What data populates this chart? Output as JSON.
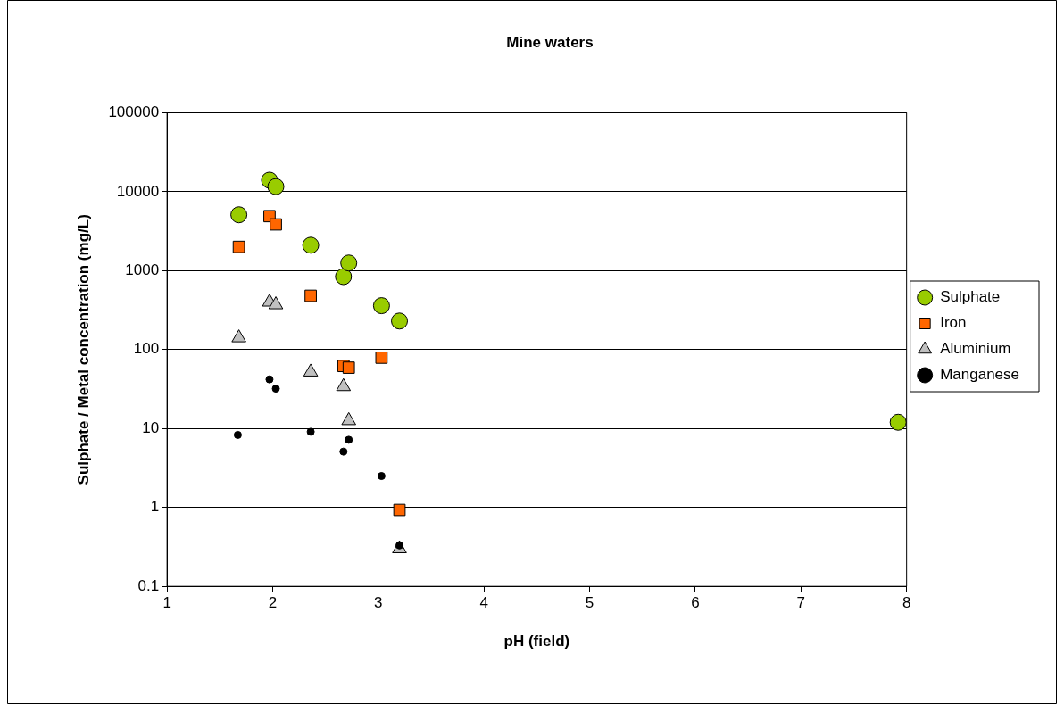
{
  "chart_data": {
    "type": "scatter",
    "title": "Mine waters",
    "xlabel": "pH (field)",
    "ylabel": "Sulphate / Metal concentration (mg/L)",
    "xlim": [
      1,
      8
    ],
    "xticks": [
      1,
      2,
      3,
      4,
      5,
      6,
      7,
      8
    ],
    "ylim": [
      0.1,
      100000
    ],
    "yticks": [
      0.1,
      1,
      10,
      100,
      1000,
      10000,
      100000
    ],
    "log": "y",
    "grid": "y",
    "legend": "right",
    "series": [
      {
        "name": "Sulphate",
        "color": "#99cc00",
        "marker": "circle",
        "x": [
          1.68,
          1.97,
          2.03,
          2.36,
          2.67,
          2.72,
          3.03,
          3.2,
          7.92
        ],
        "values": [
          5100,
          14000,
          11600,
          2100,
          840,
          1250,
          360,
          230,
          12
        ]
      },
      {
        "name": "Iron",
        "color": "#ff6600",
        "marker": "square",
        "x": [
          1.68,
          1.97,
          2.03,
          2.36,
          2.67,
          2.72,
          3.03,
          3.2
        ],
        "values": [
          2000,
          4900,
          3850,
          480,
          62,
          59,
          79,
          0.93
        ]
      },
      {
        "name": "Aluminium",
        "color": "#c0c0c0",
        "marker": "triangle",
        "x": [
          1.68,
          1.97,
          2.03,
          2.36,
          2.67,
          2.72,
          3.2
        ],
        "values": [
          141,
          400,
          370,
          52,
          34,
          12.6,
          0.3
        ]
      },
      {
        "name": "Manganese",
        "color": "#000000",
        "marker": "circle",
        "x": [
          1.67,
          1.97,
          2.03,
          2.36,
          2.67,
          2.72,
          3.03,
          3.2
        ],
        "values": [
          8.3,
          42,
          32,
          9.1,
          5.1,
          7.2,
          2.5,
          0.33
        ]
      }
    ]
  }
}
